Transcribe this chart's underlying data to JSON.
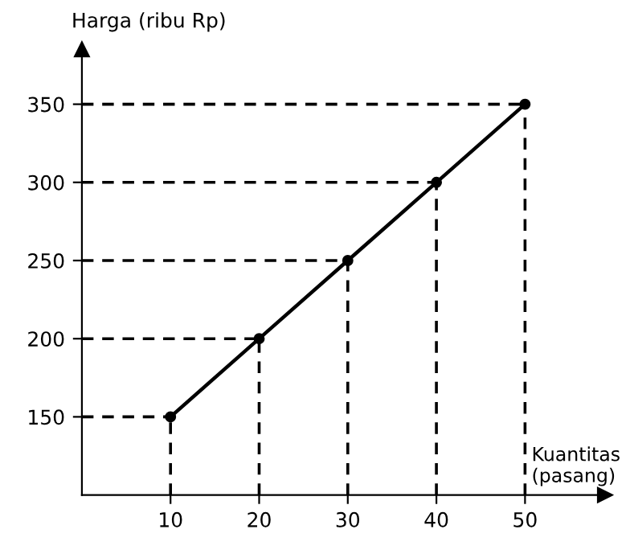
{
  "chart_data": {
    "type": "line",
    "xlabel": "Kuantitas\n(pasang)",
    "ylabel": "Harga (ribu Rp)",
    "x": [
      10,
      20,
      30,
      40,
      50
    ],
    "series": [
      {
        "color": "#000000",
        "values": [
          150,
          200,
          250,
          300,
          350
        ]
      }
    ],
    "marker": "circle",
    "line_style": "solid",
    "grid": false,
    "legend": false,
    "xlim": [
      0,
      59
    ],
    "ylim": [
      100,
      385
    ],
    "xticks": [
      10,
      20,
      30,
      40,
      50
    ],
    "yticks": [
      150,
      200,
      250,
      300,
      350
    ],
    "ref_lines": [
      {
        "axis": "y",
        "value": 150,
        "line_style": "dashed"
      },
      {
        "axis": "y",
        "value": 200,
        "line_style": "dashed"
      },
      {
        "axis": "y",
        "value": 250,
        "line_style": "dashed"
      },
      {
        "axis": "y",
        "value": 300,
        "line_style": "dashed"
      },
      {
        "axis": "y",
        "value": 350,
        "line_style": "dashed"
      },
      {
        "axis": "x",
        "value": 10,
        "line_style": "dashed"
      },
      {
        "axis": "x",
        "value": 20,
        "line_style": "dashed"
      },
      {
        "axis": "x",
        "value": 30,
        "line_style": "dashed"
      },
      {
        "axis": "x",
        "value": 40,
        "line_style": "dashed"
      },
      {
        "axis": "x",
        "value": 50,
        "line_style": "dashed"
      }
    ]
  }
}
